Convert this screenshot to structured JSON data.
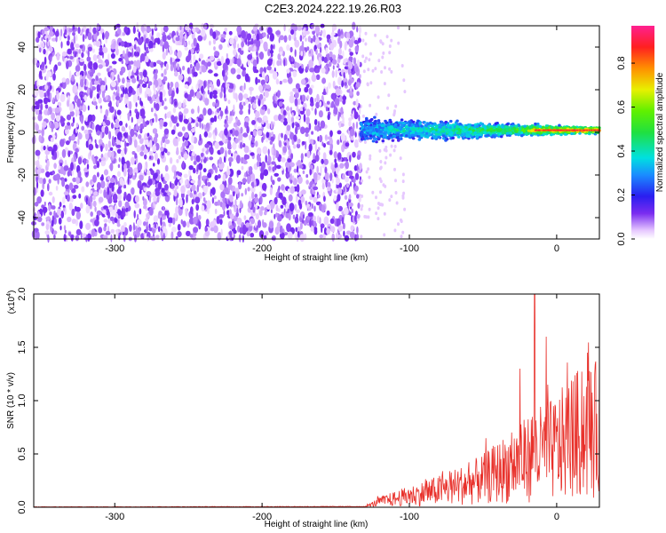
{
  "title": "C2E3.2024.222.19.26.R03",
  "chart_data": [
    {
      "type": "heatmap",
      "title": "C2E3.2024.222.19.26.R03",
      "xlabel": "Height of straight line (km)",
      "ylabel": "Frequency (Hz)",
      "xlim": [
        -355,
        29
      ],
      "ylim": [
        -50,
        50
      ],
      "x_ticks": [
        -300,
        -200,
        -100,
        0
      ],
      "x_tick_labels": [
        "-300",
        "-200",
        "-100",
        "0"
      ],
      "y_ticks": [
        -40,
        -20,
        0,
        20,
        40
      ],
      "y_tick_labels": [
        "-40",
        "-20",
        "0",
        "20",
        "40"
      ],
      "colorbar": {
        "label": "Normalized spectral amplitude",
        "range": [
          0,
          0.97
        ],
        "ticks": [
          0,
          0.2,
          0.4,
          0.6,
          0.8
        ],
        "tick_labels": [
          "0.0",
          "0.2",
          "0.4",
          "0.6",
          "0.8"
        ],
        "colormap": "rainbow (white-violet-blue-cyan-green-yellow-red-magenta)"
      },
      "regions": [
        {
          "description": "noise",
          "x_range": [
            -355,
            -133
          ],
          "freq_range": [
            -50,
            50
          ],
          "amplitude_range": [
            0.0,
            0.12
          ]
        },
        {
          "description": "signal band",
          "x_range": [
            -133,
            29
          ],
          "freq_center": 1,
          "freq_halfwidth_start": 7,
          "freq_halfwidth_end": 2,
          "amplitude_range": [
            0.1,
            0.95
          ]
        }
      ],
      "grid": false
    },
    {
      "type": "line",
      "xlabel": "Height of straight line (km)",
      "ylabel": "SNR (10 * v/v)",
      "y_multiplier_label": "(x10",
      "y_multiplier_exp": "4",
      "xlim": [
        -355,
        29
      ],
      "ylim": [
        0,
        2.0
      ],
      "x_ticks": [
        -300,
        -200,
        -100,
        0
      ],
      "x_tick_labels": [
        "-300",
        "-200",
        "-100",
        "0"
      ],
      "y_ticks": [
        0,
        0.5,
        1.0,
        1.5,
        2.0
      ],
      "y_tick_labels": [
        "0.0",
        "0.5",
        "1.0",
        "1.5",
        "2.0"
      ],
      "color": "#e8302a",
      "envelope": {
        "x": [
          -355,
          -130,
          -120,
          -100,
          -80,
          -60,
          -50,
          -40,
          -30,
          -20,
          -15,
          -10,
          0,
          10,
          20,
          29
        ],
        "y": [
          0.005,
          0.01,
          0.1,
          0.2,
          0.3,
          0.42,
          0.5,
          0.62,
          0.75,
          0.85,
          1.0,
          0.95,
          1.05,
          1.25,
          1.35,
          1.38
        ]
      },
      "peaks": [
        {
          "x": -15,
          "y": 2.0
        },
        {
          "x": -7,
          "y": 1.6
        },
        {
          "x": 21,
          "y": 1.45
        },
        {
          "x": -25,
          "y": 1.3
        }
      ],
      "grid": false
    }
  ]
}
